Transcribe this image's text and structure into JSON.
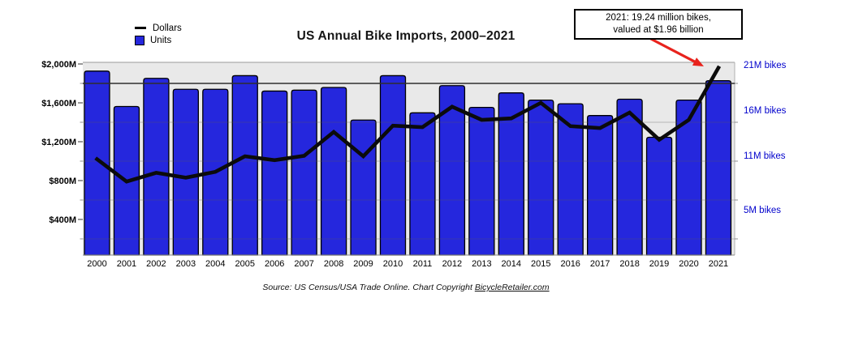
{
  "title": "US Annual Bike Imports, 2000–2021",
  "legend": {
    "items": [
      {
        "label": "Dollars",
        "swatch": "black-line"
      },
      {
        "label": "Units",
        "swatch": "blue-square"
      }
    ]
  },
  "annotation": {
    "line1": "2021: 19.24 million bikes,",
    "line2": "valued at $1.96 billion",
    "arrow_color": "#e8231d"
  },
  "footer": {
    "prefix": "Source: US Census/USA Trade Online. Chart Copyright ",
    "link": "BicycleRetailer.com"
  },
  "colors": {
    "bar_fill": "#2527dd",
    "bar_border": "#000000",
    "line": "#0b0b0b",
    "plot_background": "#e9e9e9",
    "right_axis_text": "#0000cc",
    "left_axis_text": "#000000",
    "arrow": "#e8231d"
  },
  "chart_data": {
    "type": "bar",
    "subtype": "combo-bar-line",
    "title": "US Annual Bike Imports, 2000–2021",
    "categories": [
      "2000",
      "2001",
      "2002",
      "2003",
      "2004",
      "2005",
      "2006",
      "2007",
      "2008",
      "2009",
      "2010",
      "2011",
      "2012",
      "2013",
      "2014",
      "2015",
      "2016",
      "2017",
      "2018",
      "2019",
      "2020",
      "2021"
    ],
    "series": [
      {
        "name": "Units",
        "type": "bar",
        "axis": "right",
        "unit": "million bikes",
        "values": [
          20.3,
          16.4,
          19.5,
          18.3,
          18.3,
          19.8,
          18.1,
          18.2,
          18.5,
          14.9,
          19.8,
          15.7,
          18.7,
          16.3,
          17.9,
          17.1,
          16.7,
          15.4,
          17.2,
          13.0,
          17.1,
          19.24
        ]
      },
      {
        "name": "Dollars",
        "type": "line",
        "axis": "left",
        "unit": "$M",
        "values": [
          1020,
          790,
          880,
          830,
          890,
          1050,
          1010,
          1055,
          1300,
          1050,
          1365,
          1350,
          1560,
          1425,
          1440,
          1600,
          1360,
          1340,
          1500,
          1220,
          1425,
          1960
        ]
      }
    ],
    "left_axis": {
      "tick_labels": [
        "$2,000M",
        "$1,600M",
        "$1,200M",
        "$800M",
        "$400M"
      ],
      "tick_values": [
        2000,
        1600,
        1200,
        800,
        400
      ],
      "minor_grid_values": [
        1800,
        1400,
        1000,
        600,
        200
      ],
      "dark_grid_value": 1800,
      "range": [
        0,
        2050
      ]
    },
    "right_axis": {
      "tick_labels": [
        "21M bikes",
        "16M bikes",
        "11M bikes",
        "5M bikes"
      ],
      "tick_values": [
        21,
        16,
        11,
        5
      ],
      "range": [
        0,
        21.3
      ]
    },
    "legend_position": "top-left",
    "grid": "horizontal",
    "annotation_points_to": {
      "category": "2021",
      "series": "Dollars"
    }
  }
}
